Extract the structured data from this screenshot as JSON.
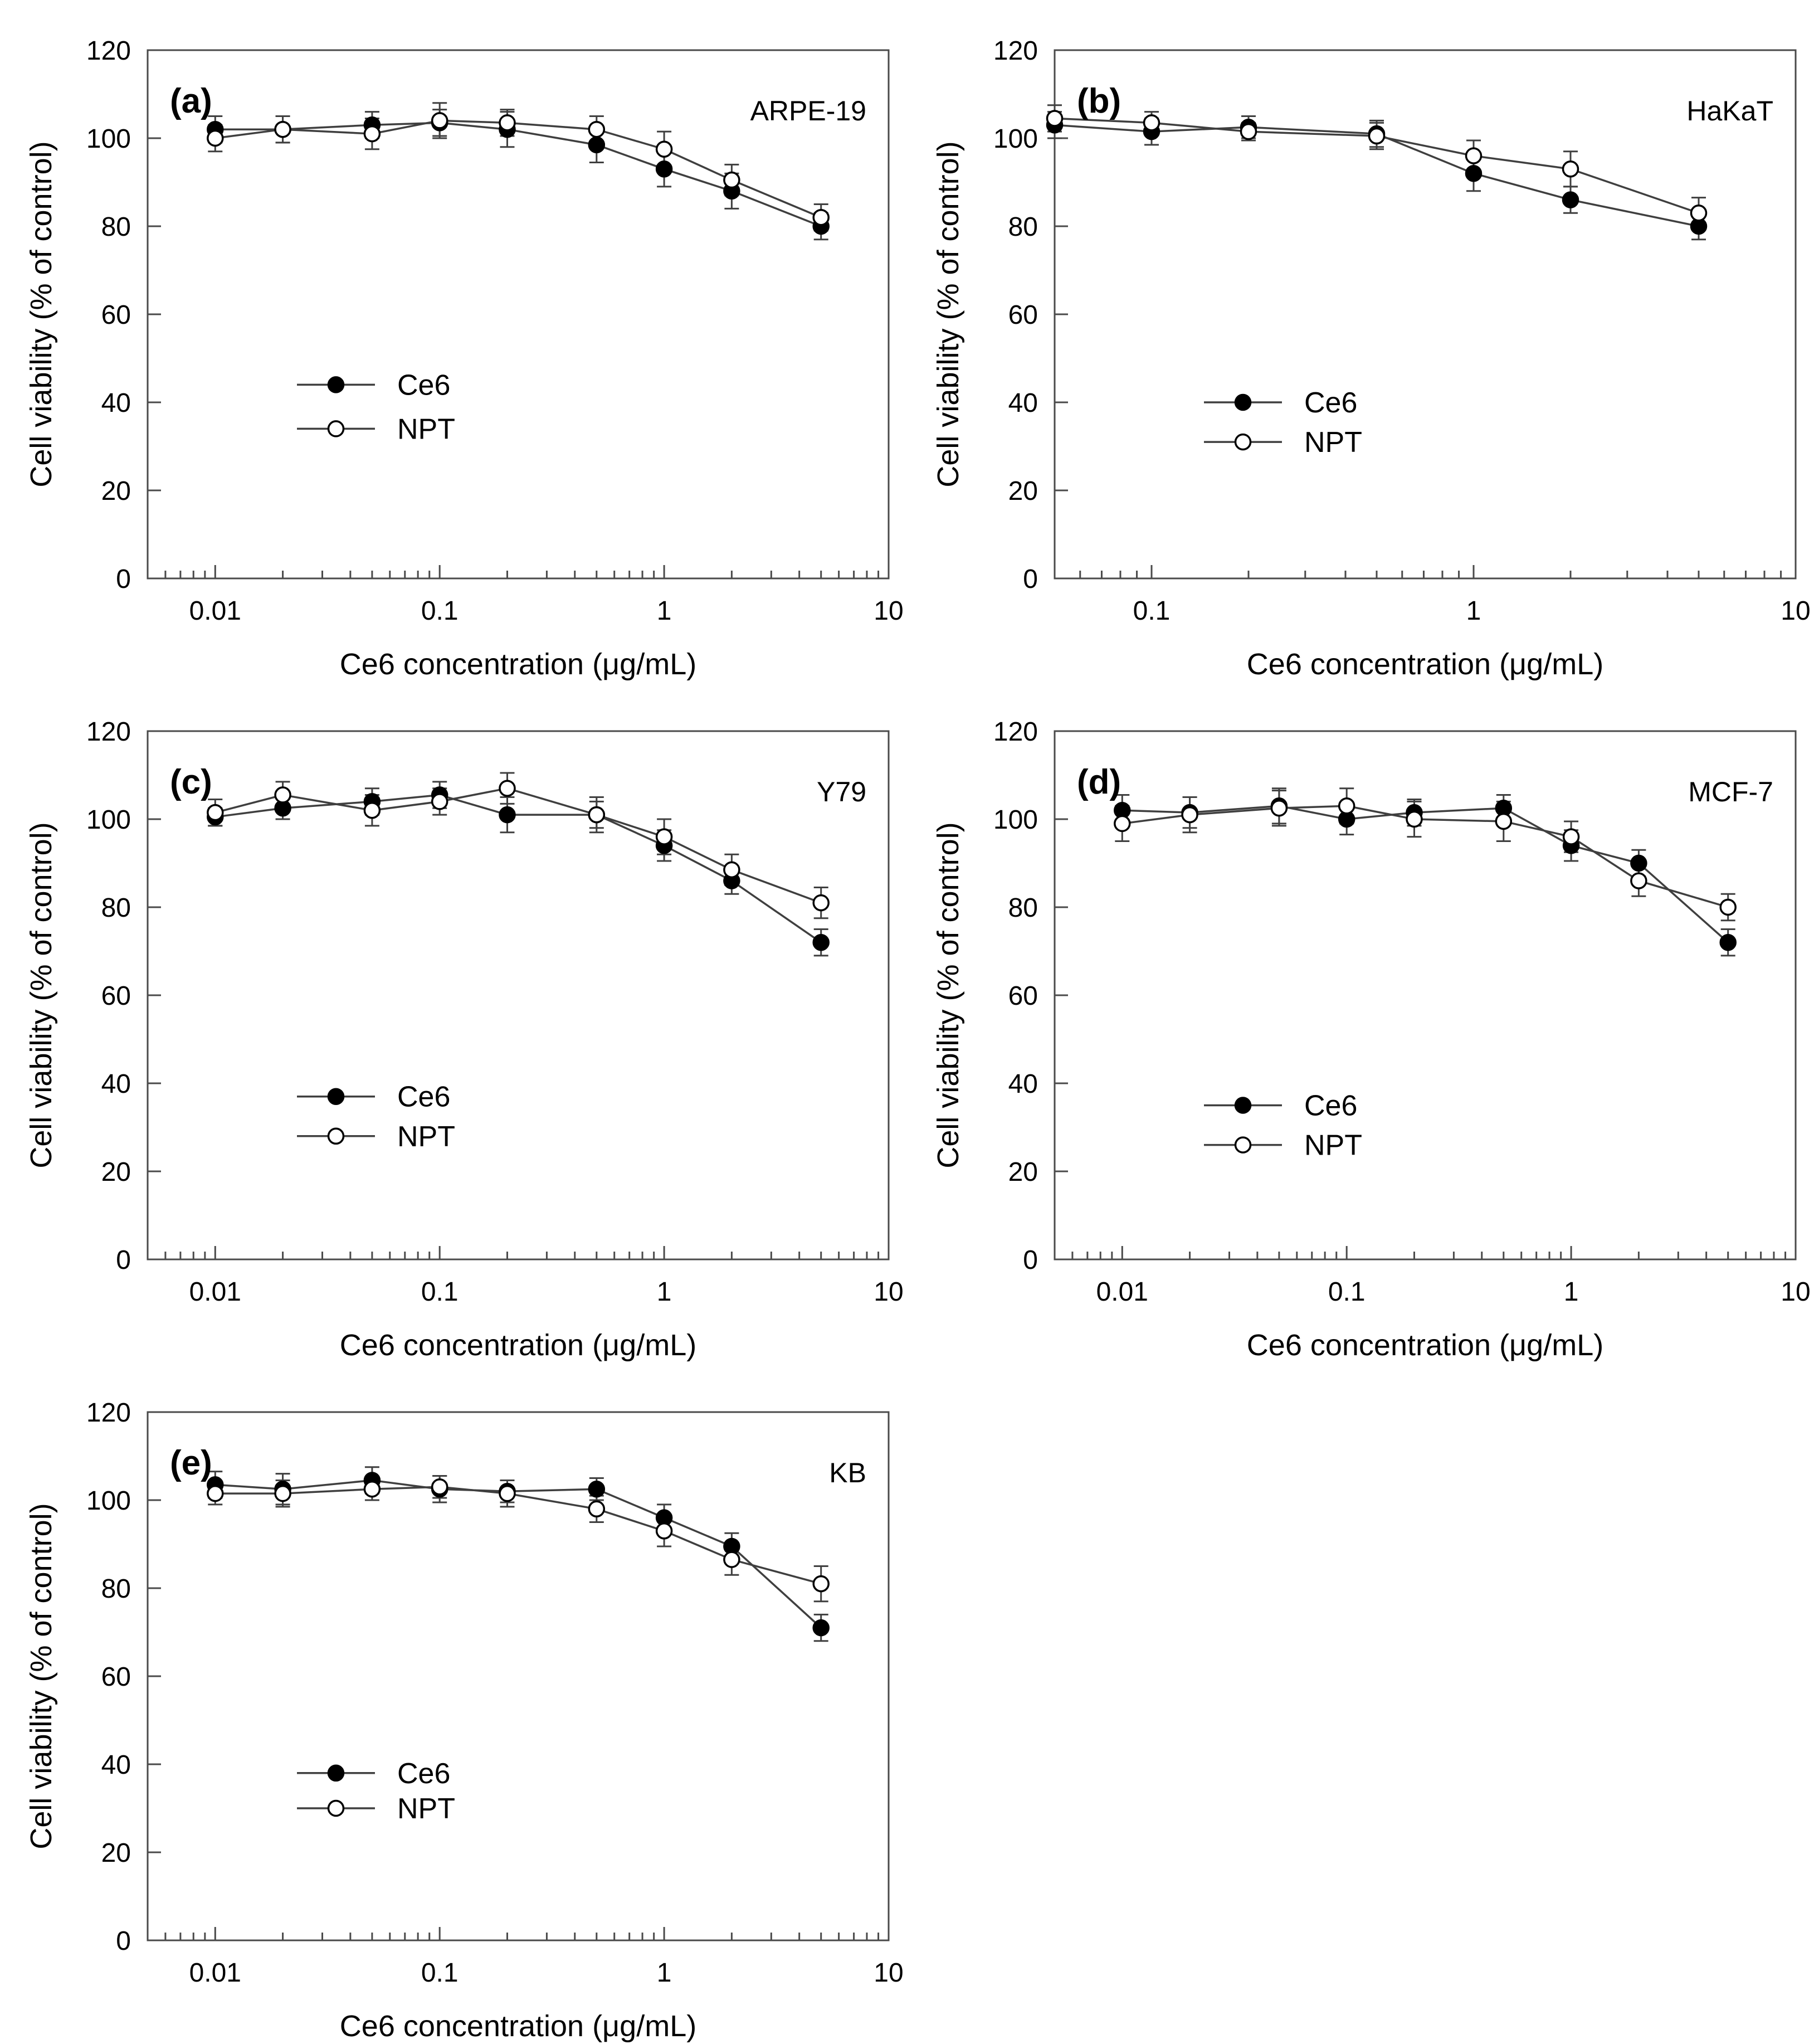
{
  "figure": {
    "x_axis_title": "Ce6 concentration (μg/mL)",
    "y_axis_title": "Cell viability (% of control)",
    "y_ticks": [
      "0",
      "20",
      "40",
      "60",
      "80",
      "100",
      "120"
    ],
    "legend": [
      {
        "label": "Ce6",
        "marker": "filled"
      },
      {
        "label": "NPT",
        "marker": "open"
      }
    ],
    "colors": {
      "text": "#000000",
      "frame": "#4a4a4a",
      "line": "#3f3f3f",
      "marker_filled": "#000000",
      "marker_open_fill": "#ffffff",
      "background": "#ffffff"
    }
  },
  "chart_data": [
    {
      "type": "line",
      "panel_label": "(a)",
      "cell_line": "ARPE-19",
      "x_scale": "log",
      "xlim": [
        0.005,
        10
      ],
      "ylim": [
        0,
        120
      ],
      "x_major_ticks": [
        0.01,
        0.1,
        1,
        10
      ],
      "x_tick_labels": [
        "0.01",
        "0.1",
        "1",
        "10"
      ],
      "x": [
        0.01,
        0.02,
        0.05,
        0.1,
        0.2,
        0.5,
        1,
        2,
        5
      ],
      "series": [
        {
          "name": "Ce6",
          "marker": "filled",
          "values": [
            102,
            102,
            103,
            103.5,
            102,
            98.5,
            93,
            88,
            80
          ],
          "errors": [
            3,
            3,
            3,
            3,
            4,
            4,
            4,
            4,
            3
          ]
        },
        {
          "name": "NPT",
          "marker": "open",
          "values": [
            100,
            102,
            101,
            104,
            103.5,
            102,
            97.5,
            90.5,
            82
          ],
          "errors": [
            3,
            3,
            3.5,
            4,
            3,
            3,
            4,
            3.5,
            3
          ]
        }
      ],
      "legend_y": [
        44,
        34
      ]
    },
    {
      "type": "line",
      "panel_label": "(b)",
      "cell_line": "HaKaT",
      "x_scale": "log",
      "xlim": [
        0.05,
        10
      ],
      "ylim": [
        0,
        120
      ],
      "x_major_ticks": [
        0.1,
        1,
        10
      ],
      "x_tick_labels": [
        "0.1",
        "1",
        "10"
      ],
      "x": [
        0.05,
        0.1,
        0.2,
        0.5,
        1,
        2,
        5
      ],
      "series": [
        {
          "name": "Ce6",
          "marker": "filled",
          "values": [
            103,
            101.5,
            102.5,
            101,
            92,
            86,
            80
          ],
          "errors": [
            3,
            3,
            2.5,
            3,
            4,
            3,
            3
          ]
        },
        {
          "name": "NPT",
          "marker": "open",
          "values": [
            104.5,
            103.5,
            101.5,
            100.5,
            96,
            93,
            83
          ],
          "errors": [
            3,
            2.5,
            2,
            3,
            3.5,
            4,
            3.5
          ]
        }
      ],
      "legend_y": [
        40,
        31
      ]
    },
    {
      "type": "line",
      "panel_label": "(c)",
      "cell_line": "Y79",
      "x_scale": "log",
      "xlim": [
        0.005,
        10
      ],
      "ylim": [
        0,
        120
      ],
      "x_major_ticks": [
        0.01,
        0.1,
        1,
        10
      ],
      "x_tick_labels": [
        "0.01",
        "0.1",
        "1",
        "10"
      ],
      "x": [
        0.01,
        0.02,
        0.05,
        0.1,
        0.2,
        0.5,
        1,
        2,
        5
      ],
      "series": [
        {
          "name": "Ce6",
          "marker": "filled",
          "values": [
            100.5,
            102.5,
            104,
            105.5,
            101,
            101,
            94,
            86,
            72
          ],
          "errors": [
            2,
            2.5,
            3,
            3,
            4,
            3,
            3.5,
            3,
            3
          ]
        },
        {
          "name": "NPT",
          "marker": "open",
          "values": [
            101.5,
            105.5,
            102,
            104,
            107,
            101,
            96,
            88.5,
            81
          ],
          "errors": [
            3,
            3,
            3.5,
            3,
            3.5,
            4,
            4,
            3.5,
            3.5
          ]
        }
      ],
      "legend_y": [
        37,
        28
      ]
    },
    {
      "type": "line",
      "panel_label": "(d)",
      "cell_line": "MCF-7",
      "x_scale": "log",
      "xlim": [
        0.005,
        10
      ],
      "ylim": [
        0,
        120
      ],
      "x_major_ticks": [
        0.01,
        0.1,
        1,
        10
      ],
      "x_tick_labels": [
        "0.01",
        "0.1",
        "1",
        "10"
      ],
      "x": [
        0.01,
        0.02,
        0.05,
        0.1,
        0.2,
        0.5,
        1,
        2,
        5
      ],
      "series": [
        {
          "name": "Ce6",
          "marker": "filled",
          "values": [
            102,
            101.5,
            103,
            100,
            101.5,
            102.5,
            94,
            90,
            72
          ],
          "errors": [
            3.5,
            3.5,
            4,
            3.5,
            3,
            3,
            3.5,
            3,
            3
          ]
        },
        {
          "name": "NPT",
          "marker": "open",
          "values": [
            99,
            101,
            102.5,
            103,
            100,
            99.5,
            96,
            86,
            80
          ],
          "errors": [
            4,
            4,
            4,
            4,
            4,
            4.5,
            3.5,
            3.5,
            3
          ]
        }
      ],
      "legend_y": [
        35,
        26
      ]
    },
    {
      "type": "line",
      "panel_label": "(e)",
      "cell_line": "KB",
      "x_scale": "log",
      "xlim": [
        0.005,
        10
      ],
      "ylim": [
        0,
        120
      ],
      "x_major_ticks": [
        0.01,
        0.1,
        1,
        10
      ],
      "x_tick_labels": [
        "0.01",
        "0.1",
        "1",
        "10"
      ],
      "x": [
        0.01,
        0.02,
        0.05,
        0.1,
        0.2,
        0.5,
        1,
        2,
        5
      ],
      "series": [
        {
          "name": "Ce6",
          "marker": "filled",
          "values": [
            103.5,
            102.5,
            104.5,
            102.5,
            102,
            102.5,
            96,
            89.5,
            71
          ],
          "errors": [
            3,
            3.5,
            3,
            3,
            2.5,
            2.5,
            3,
            3,
            3
          ]
        },
        {
          "name": "NPT",
          "marker": "open",
          "values": [
            101.5,
            101.5,
            102.5,
            103,
            101.5,
            98,
            93,
            86.5,
            81
          ],
          "errors": [
            2.5,
            3,
            2.5,
            2.5,
            3,
            3,
            3.5,
            3.5,
            4
          ]
        }
      ],
      "legend_y": [
        38,
        30
      ]
    }
  ]
}
